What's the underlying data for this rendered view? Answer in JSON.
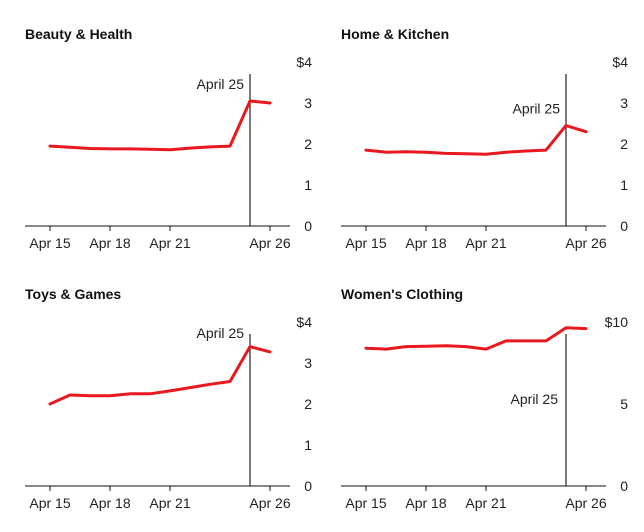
{
  "chart_data": [
    {
      "type": "line",
      "title": "Beauty & Health",
      "x": [
        "Apr 15",
        "Apr 16",
        "Apr 17",
        "Apr 18",
        "Apr 19",
        "Apr 20",
        "Apr 21",
        "Apr 22",
        "Apr 23",
        "Apr 24",
        "Apr 25",
        "Apr 26"
      ],
      "series": [
        {
          "values": [
            1.95,
            1.92,
            1.89,
            1.88,
            1.88,
            1.87,
            1.86,
            1.9,
            1.93,
            1.95,
            3.05,
            3.0
          ]
        }
      ],
      "ylim": [
        0,
        4
      ],
      "yticks": [
        0,
        1,
        2,
        3,
        4
      ],
      "ytick_labels": [
        "0",
        "1",
        "2",
        "3",
        "$4"
      ],
      "xticks": [
        "Apr 15",
        "Apr 18",
        "Apr 21",
        "Apr 26"
      ],
      "annotation": {
        "label": "April 25",
        "x": "Apr 25"
      },
      "line_color": "#e8191e"
    },
    {
      "type": "line",
      "title": "Home & Kitchen",
      "x": [
        "Apr 15",
        "Apr 16",
        "Apr 17",
        "Apr 18",
        "Apr 19",
        "Apr 20",
        "Apr 21",
        "Apr 22",
        "Apr 23",
        "Apr 24",
        "Apr 25",
        "Apr 26"
      ],
      "series": [
        {
          "values": [
            1.85,
            1.8,
            1.81,
            1.8,
            1.77,
            1.76,
            1.75,
            1.8,
            1.83,
            1.85,
            2.45,
            2.3
          ]
        }
      ],
      "ylim": [
        0,
        4
      ],
      "yticks": [
        0,
        1,
        2,
        3,
        4
      ],
      "ytick_labels": [
        "0",
        "1",
        "2",
        "3",
        "$4"
      ],
      "xticks": [
        "Apr 15",
        "Apr 18",
        "Apr 21",
        "Apr 26"
      ],
      "annotation": {
        "label": "April 25",
        "x": "Apr 25"
      },
      "line_color": "#e8191e"
    },
    {
      "type": "line",
      "title": "Toys & Games",
      "x": [
        "Apr 15",
        "Apr 16",
        "Apr 17",
        "Apr 18",
        "Apr 19",
        "Apr 20",
        "Apr 21",
        "Apr 22",
        "Apr 23",
        "Apr 24",
        "Apr 25",
        "Apr 26"
      ],
      "series": [
        {
          "values": [
            2.0,
            2.22,
            2.2,
            2.2,
            2.25,
            2.25,
            2.32,
            2.4,
            2.48,
            2.55,
            3.4,
            3.27
          ]
        }
      ],
      "ylim": [
        0,
        4
      ],
      "yticks": [
        0,
        1,
        2,
        3,
        4
      ],
      "ytick_labels": [
        "0",
        "1",
        "2",
        "3",
        "$4"
      ],
      "xticks": [
        "Apr 15",
        "Apr 18",
        "Apr 21",
        "Apr 26"
      ],
      "annotation": {
        "label": "April 25",
        "x": "Apr 25"
      },
      "line_color": "#e8191e"
    },
    {
      "type": "line",
      "title": "Women's Clothing",
      "x": [
        "Apr 15",
        "Apr 16",
        "Apr 17",
        "Apr 18",
        "Apr 19",
        "Apr 20",
        "Apr 21",
        "Apr 22",
        "Apr 23",
        "Apr 24",
        "Apr 25",
        "Apr 26"
      ],
      "series": [
        {
          "values": [
            8.4,
            8.35,
            8.5,
            8.52,
            8.55,
            8.5,
            8.35,
            8.85,
            8.85,
            8.85,
            9.65,
            9.6
          ]
        }
      ],
      "ylim": [
        0,
        10
      ],
      "yticks": [
        0,
        5,
        10
      ],
      "ytick_labels": [
        "0",
        "5",
        "$10"
      ],
      "xticks": [
        "Apr 15",
        "Apr 18",
        "Apr 21",
        "Apr 26"
      ],
      "annotation": {
        "label": "April 25",
        "x": "Apr 25"
      },
      "line_color": "#e8191e"
    }
  ]
}
